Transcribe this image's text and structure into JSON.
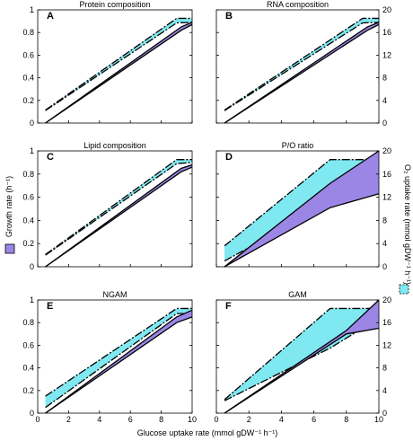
{
  "x_axis_label": "Glucose uptake rate (mmol gDW⁻¹ h⁻¹)",
  "left_axis_label": "Growth rate (h⁻¹)",
  "right_axis_label": "O₂ uptake rate (mmol gDW⁻¹ h⁻¹)",
  "colors": {
    "growth": "#9b86e6",
    "o2": "#7fe8f0"
  },
  "chart_data": [
    {
      "type": "area",
      "panel_letter": "A",
      "title": "Protein composition",
      "x": [
        0,
        10
      ],
      "left_ylim": [
        0,
        1
      ],
      "right_ylim": [
        0,
        20
      ],
      "growth_band": {
        "x": [
          0.5,
          9.3,
          10
        ],
        "lower": [
          0.0,
          0.82,
          0.87
        ],
        "upper": [
          0.0,
          0.85,
          0.89
        ]
      },
      "o2_band": {
        "x": [
          0.5,
          9.0,
          10
        ],
        "lower": [
          2.2,
          17.7,
          17.8
        ],
        "upper": [
          2.3,
          18.5,
          18.5
        ]
      }
    },
    {
      "type": "area",
      "panel_letter": "B",
      "title": "RNA composition",
      "x": [
        0,
        10
      ],
      "left_ylim": [
        0,
        1
      ],
      "right_ylim": [
        0,
        20
      ],
      "growth_band": {
        "x": [
          0.5,
          9.3,
          10
        ],
        "lower": [
          0.0,
          0.82,
          0.87
        ],
        "upper": [
          0.0,
          0.85,
          0.89
        ]
      },
      "o2_band": {
        "x": [
          0.5,
          9.0,
          10
        ],
        "lower": [
          2.2,
          17.7,
          17.8
        ],
        "upper": [
          2.3,
          18.5,
          18.5
        ]
      }
    },
    {
      "type": "area",
      "panel_letter": "C",
      "title": "Lipid composition",
      "x": [
        0,
        10
      ],
      "left_ylim": [
        0,
        1
      ],
      "right_ylim": [
        0,
        20
      ],
      "growth_band": {
        "x": [
          0.5,
          9.3,
          10
        ],
        "lower": [
          0.0,
          0.82,
          0.86
        ],
        "upper": [
          0.0,
          0.85,
          0.88
        ]
      },
      "o2_band": {
        "x": [
          0.5,
          9.0,
          10
        ],
        "lower": [
          2.0,
          17.8,
          18.0
        ],
        "upper": [
          2.1,
          18.5,
          18.5
        ]
      }
    },
    {
      "type": "area",
      "panel_letter": "D",
      "title": "P/O ratio",
      "x": [
        0,
        10
      ],
      "left_ylim": [
        0,
        1
      ],
      "right_ylim": [
        0,
        20
      ],
      "growth_band": {
        "x": [
          0.5,
          7.0,
          10
        ],
        "lower": [
          0.0,
          0.51,
          0.63
        ],
        "upper": [
          0.0,
          0.72,
          1.0
        ]
      },
      "o2_band": {
        "x": [
          0.5,
          7.0,
          10
        ],
        "lower": [
          1.0,
          11.0,
          15.5
        ],
        "upper": [
          3.6,
          18.5,
          18.5
        ]
      }
    },
    {
      "type": "area",
      "panel_letter": "E",
      "title": "NGAM",
      "x": [
        0,
        10
      ],
      "left_ylim": [
        0,
        1
      ],
      "right_ylim": [
        0,
        20
      ],
      "growth_band": {
        "x": [
          0.5,
          9.0,
          10
        ],
        "lower": [
          0.0,
          0.8,
          0.85
        ],
        "upper": [
          0.0,
          0.85,
          0.91
        ]
      },
      "o2_band": {
        "x": [
          0.5,
          9.0,
          10
        ],
        "lower": [
          1.0,
          17.6,
          17.6
        ],
        "upper": [
          3.0,
          18.5,
          18.5
        ]
      }
    },
    {
      "type": "area",
      "panel_letter": "F",
      "title": "GAM",
      "x": [
        0,
        10
      ],
      "left_ylim": [
        0,
        1
      ],
      "right_ylim": [
        0,
        20
      ],
      "growth_band": {
        "x": [
          0.5,
          8.0,
          10
        ],
        "lower": [
          0.0,
          0.7,
          0.75
        ],
        "upper": [
          0.0,
          0.73,
          1.0
        ]
      },
      "o2_band": {
        "x": [
          0.5,
          7.0,
          10
        ],
        "lower": [
          2.2,
          11.5,
          16.8
        ],
        "upper": [
          2.4,
          18.5,
          18.5
        ]
      }
    }
  ]
}
